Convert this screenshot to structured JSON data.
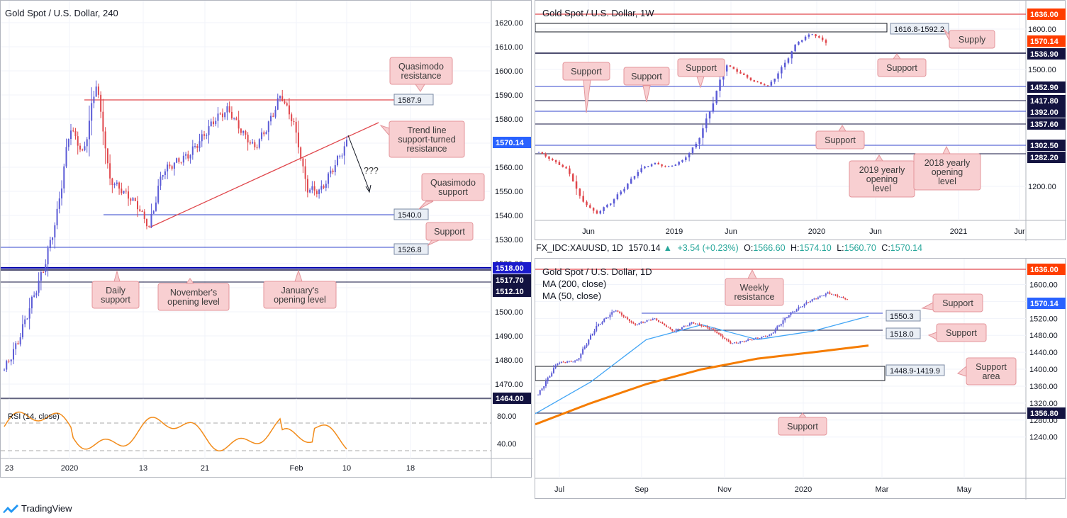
{
  "left_chart": {
    "title": "Gold Spot / U.S. Dollar, 240",
    "y_ticks": [
      "1620.00",
      "1610.00",
      "1600.00",
      "1590.00",
      "1580.00",
      "1570.00",
      "1560.00",
      "1550.00",
      "1540.00",
      "1530.00",
      "1520.00",
      "1510.00",
      "1500.00",
      "1490.00",
      "1480.00",
      "1470.00"
    ],
    "x_ticks": [
      "23",
      "2020",
      "13",
      "21",
      "Feb",
      "10",
      "18"
    ],
    "price_tags": [
      {
        "text": "1570.14",
        "color": "#2962ff",
        "fill": "#2962ff"
      },
      {
        "text": "1518.00",
        "color": "#0000cc",
        "fill": "#1a1acc"
      },
      {
        "text": "1517.70",
        "color": "#1a1a4d",
        "fill": "#131340"
      },
      {
        "text": "1512.10",
        "color": "#1a1a4d",
        "fill": "#131340"
      },
      {
        "text": "1464.00",
        "color": "#1a1a4d",
        "fill": "#131340"
      }
    ],
    "level_labels": [
      "1587.9",
      "1540.0",
      "1526.8"
    ],
    "annotations": [
      {
        "lines": [
          "Quasimodo",
          "resistance"
        ]
      },
      {
        "lines": [
          "Trend line",
          "support-turned",
          "resistance"
        ]
      },
      {
        "lines": [
          "Quasimodo",
          "support"
        ]
      },
      {
        "lines": [
          "Support"
        ]
      },
      {
        "lines": [
          "Daily",
          "support"
        ]
      },
      {
        "lines": [
          "November's",
          "opening level"
        ]
      },
      {
        "lines": [
          "January's",
          "opening level"
        ]
      }
    ],
    "question": "???",
    "rsi": {
      "title": "RSI (14, close)",
      "ticks": [
        "80.00",
        "40.00"
      ]
    }
  },
  "weekly_chart": {
    "title": "Gold Spot / U.S. Dollar, 1W",
    "y_ticks": [
      "1600.00",
      "1500.00",
      "1200.00"
    ],
    "x_ticks": [
      "Jun",
      "2019",
      "Jun",
      "2020",
      "Jun",
      "2021",
      "Jur"
    ],
    "price_tags": [
      {
        "text": "1636.00",
        "fill": "#ff3d00"
      },
      {
        "text": "1570.14",
        "fill": "#ff3d00"
      },
      {
        "text": "1536.90",
        "fill": "#131340"
      },
      {
        "text": "1452.90",
        "fill": "#131340"
      },
      {
        "text": "1417.80",
        "fill": "#131340"
      },
      {
        "text": "1392.00",
        "fill": "#131340"
      },
      {
        "text": "1357.60",
        "fill": "#131340"
      },
      {
        "text": "1302.50",
        "fill": "#131340"
      },
      {
        "text": "1282.20",
        "fill": "#131340"
      }
    ],
    "zone_label": "1616.8-1592.2",
    "annotations": [
      {
        "lines": [
          "Supply"
        ]
      },
      {
        "lines": [
          "Support"
        ]
      },
      {
        "lines": [
          "Support"
        ]
      },
      {
        "lines": [
          "Support"
        ]
      },
      {
        "lines": [
          "Support"
        ]
      },
      {
        "lines": [
          "Support"
        ]
      },
      {
        "lines": [
          "2019 yearly",
          "opening",
          "level"
        ]
      },
      {
        "lines": [
          "2018 yearly",
          "opening",
          "level"
        ]
      }
    ]
  },
  "info_bar": {
    "symbol": "FX_IDC:XAUUSD, 1D",
    "price": "1570.14",
    "change": "+3.54 (+0.23%)",
    "o_label": "O:",
    "o": "1566.60",
    "h_label": "H:",
    "h": "1574.10",
    "l_label": "L:",
    "l": "1560.70",
    "c_label": "C:",
    "c": "1570.14"
  },
  "daily_chart": {
    "title": "Gold Spot / U.S. Dollar, 1D",
    "ma200": "MA (200, close)",
    "ma50": "MA (50, close)",
    "y_ticks": [
      "1600.00",
      "1560.00",
      "1520.00",
      "1480.00",
      "1440.00",
      "1400.00",
      "1360.00",
      "1320.00",
      "1280.00",
      "1240.00"
    ],
    "x_ticks": [
      "Jul",
      "Sep",
      "Nov",
      "2020",
      "Mar",
      "May"
    ],
    "price_tags": [
      {
        "text": "1636.00",
        "fill": "#ff3d00"
      },
      {
        "text": "1570.14",
        "fill": "#2962ff"
      },
      {
        "text": "1356.80",
        "fill": "#131340"
      }
    ],
    "level_labels": [
      "1550.3",
      "1518.0",
      "1448.9-1419.9"
    ],
    "annotations": [
      {
        "lines": [
          "Weekly",
          "resistance"
        ]
      },
      {
        "lines": [
          "Support"
        ]
      },
      {
        "lines": [
          "Support"
        ]
      },
      {
        "lines": [
          "Support",
          "area"
        ]
      },
      {
        "lines": [
          "Support"
        ]
      }
    ]
  },
  "brand": "TradingView",
  "chart_data": [
    {
      "type": "line",
      "title": "Gold Spot / U.S. Dollar, 240",
      "ylim": [
        1460,
        1625
      ],
      "series": [
        {
          "values": [
            1476,
            1487,
            1503,
            1518,
            1540,
            1577,
            1565,
            1596,
            1555,
            1550,
            1545,
            1535,
            1558,
            1562,
            1565,
            1572,
            1580,
            1584,
            1575,
            1568,
            1577,
            1590,
            1578,
            1551,
            1550,
            1560,
            1570
          ]
        }
      ],
      "levels": [
        1587.9,
        1540.0,
        1526.8,
        1518.0,
        1517.7,
        1512.1,
        1464.0
      ]
    },
    {
      "type": "line",
      "title": "Gold Spot / U.S. Dollar, 1W",
      "series": [
        {
          "values": [
            1320,
            1300,
            1280,
            1210,
            1180,
            1205,
            1240,
            1280,
            1295,
            1285,
            1300,
            1340,
            1420,
            1520,
            1500,
            1480,
            1470,
            1515,
            1570,
            1590,
            1570
          ]
        }
      ],
      "levels": [
        1636.0,
        1536.9,
        1452.9,
        1417.8,
        1392.0,
        1357.6,
        1302.5,
        1282.2
      ],
      "zone": [
        1592.2,
        1616.8
      ]
    },
    {
      "type": "line",
      "title": "Gold Spot / U.S. Dollar, 1D",
      "ylim": [
        1230,
        1650
      ],
      "series": [
        {
          "name": "MA (200, close)",
          "values": [
            1270,
            1320,
            1365,
            1400,
            1425,
            1440,
            1456
          ]
        },
        {
          "name": "MA (50, close)",
          "values": [
            1295,
            1370,
            1470,
            1505,
            1470,
            1490,
            1525
          ]
        }
      ],
      "levels": [
        1636.0,
        1550.3,
        1518.0,
        1356.8
      ],
      "zone": [
        1419.9,
        1448.9
      ]
    }
  ]
}
